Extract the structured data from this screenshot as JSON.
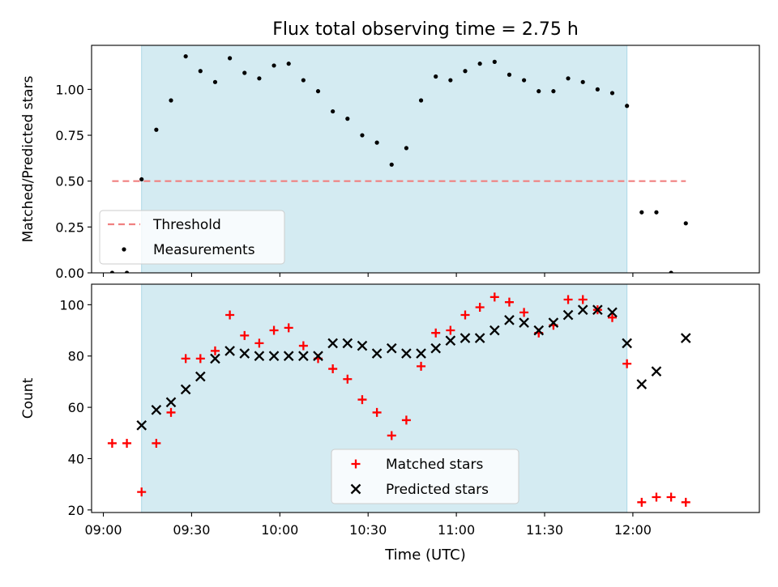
{
  "chart_data": {
    "title": "Flux total observing time = 2.75 h",
    "xlabel": "Time (UTC)",
    "x_ticks": [
      "09:00",
      "09:30",
      "10:00",
      "10:30",
      "11:00",
      "11:30",
      "12:00"
    ],
    "x_range": [
      "08:56",
      "12:43"
    ],
    "shaded_interval": [
      "09:13",
      "11:58"
    ],
    "shade_color": "#add8e6",
    "times": [
      "09:03",
      "09:08",
      "09:13",
      "09:18",
      "09:23",
      "09:28",
      "09:33",
      "09:38",
      "09:43",
      "09:48",
      "09:53",
      "09:58",
      "10:03",
      "10:08",
      "10:13",
      "10:18",
      "10:23",
      "10:28",
      "10:33",
      "10:38",
      "10:43",
      "10:48",
      "10:53",
      "10:58",
      "11:03",
      "11:08",
      "11:13",
      "11:18",
      "11:23",
      "11:28",
      "11:33",
      "11:38",
      "11:43",
      "11:48",
      "11:53",
      "11:58",
      "12:03",
      "12:08",
      "12:13",
      "12:18"
    ],
    "panels": [
      {
        "type": "scatter",
        "ylabel": "Matched/Predicted stars",
        "ylim": [
          0,
          1.24
        ],
        "y_ticks": [
          "0.00",
          "0.25",
          "0.50",
          "0.75",
          "1.00"
        ],
        "y_tick_values": [
          0,
          0.25,
          0.5,
          0.75,
          1.0
        ],
        "legend_position": "lower-left",
        "threshold": {
          "name": "Threshold",
          "value": 0.5,
          "x_range": [
            "09:03",
            "12:18"
          ],
          "color": "#f08080"
        },
        "series": [
          {
            "name": "Measurements",
            "color": "#000000",
            "values": [
              0.0,
              0.0,
              0.51,
              0.78,
              0.94,
              1.18,
              1.1,
              1.04,
              1.17,
              1.09,
              1.06,
              1.13,
              1.14,
              1.05,
              0.99,
              0.88,
              0.84,
              0.75,
              0.71,
              0.59,
              0.68,
              0.94,
              1.07,
              1.05,
              1.1,
              1.14,
              1.15,
              1.08,
              1.05,
              0.99,
              0.99,
              1.06,
              1.04,
              1.0,
              0.98,
              0.91,
              0.33,
              0.33,
              0.0,
              0.27
            ]
          }
        ]
      },
      {
        "type": "scatter",
        "ylabel": "Count",
        "ylim": [
          19,
          108
        ],
        "y_ticks": [
          "20",
          "40",
          "60",
          "80",
          "100"
        ],
        "y_tick_values": [
          20,
          40,
          60,
          80,
          100
        ],
        "legend_position": "lower-center",
        "series": [
          {
            "name": "Matched stars",
            "marker": "plus",
            "color": "#ff0000",
            "values": [
              46,
              46,
              27,
              46,
              58,
              79,
              79,
              82,
              96,
              88,
              85,
              90,
              91,
              84,
              79,
              75,
              71,
              63,
              58,
              49,
              55,
              76,
              89,
              90,
              96,
              99,
              103,
              101,
              97,
              89,
              92,
              102,
              102,
              98,
              95,
              77,
              23,
              25,
              25,
              23
            ]
          },
          {
            "name": "Predicted stars",
            "marker": "x",
            "color": "#000000",
            "values": [
              null,
              null,
              53,
              59,
              62,
              67,
              72,
              79,
              82,
              81,
              80,
              80,
              80,
              80,
              80,
              85,
              85,
              84,
              81,
              83,
              81,
              81,
              83,
              86,
              87,
              87,
              90,
              94,
              93,
              90,
              93,
              96,
              98,
              98,
              97,
              85,
              69,
              74,
              null,
              87
            ]
          }
        ]
      }
    ]
  }
}
